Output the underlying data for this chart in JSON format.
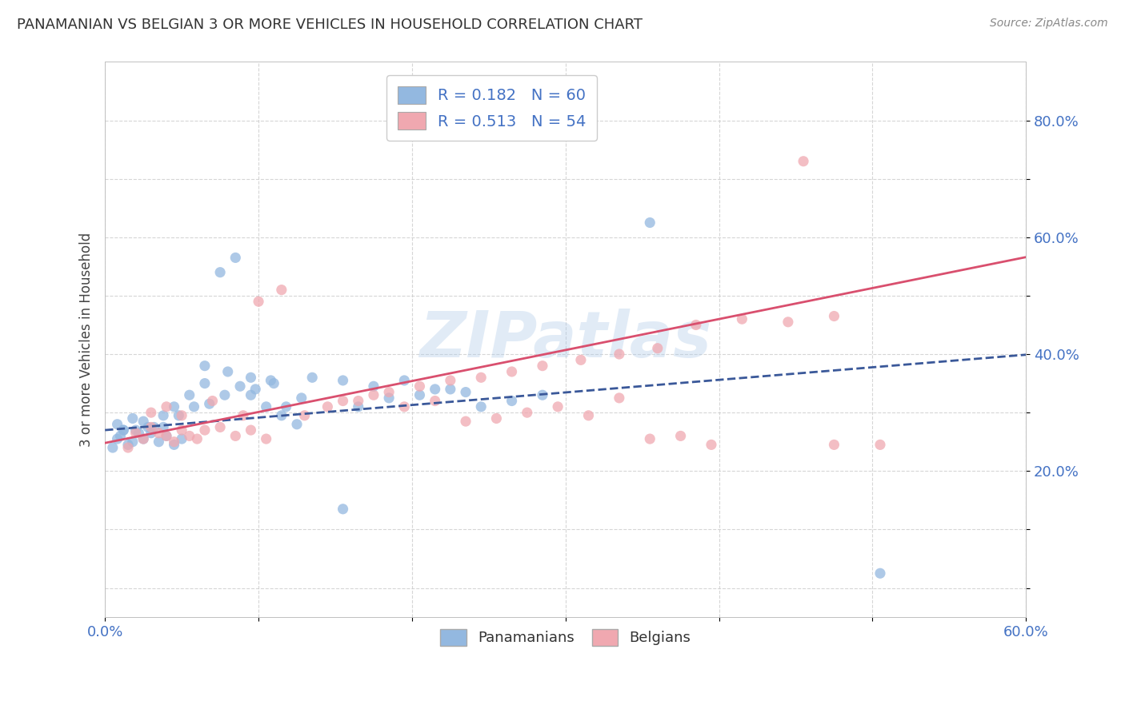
{
  "title": "PANAMANIAN VS BELGIAN 3 OR MORE VEHICLES IN HOUSEHOLD CORRELATION CHART",
  "source": "Source: ZipAtlas.com",
  "ylabel": "3 or more Vehicles in Household",
  "xlim": [
    0.0,
    0.6
  ],
  "ylim": [
    -0.05,
    0.9
  ],
  "x_ticks": [
    0.0,
    0.1,
    0.2,
    0.3,
    0.4,
    0.5,
    0.6
  ],
  "x_tick_labels": [
    "0.0%",
    "",
    "",
    "",
    "",
    "",
    "60.0%"
  ],
  "y_ticks": [
    0.0,
    0.1,
    0.2,
    0.3,
    0.4,
    0.5,
    0.6,
    0.7,
    0.8
  ],
  "y_tick_labels": [
    "",
    "",
    "20.0%",
    "",
    "40.0%",
    "",
    "60.0%",
    "",
    "80.0%"
  ],
  "legend_r1": "R = 0.182   N = 60",
  "legend_r2": "R = 0.513   N = 54",
  "legend_labels": [
    "Panamanians",
    "Belgians"
  ],
  "blue_color": "#93b8e0",
  "pink_color": "#f0a8b0",
  "blue_line_color": "#3a5899",
  "pink_line_color": "#d94f6e",
  "blue_line_intercept": 0.27,
  "blue_line_slope": 0.215,
  "pink_line_intercept": 0.248,
  "pink_line_slope": 0.53,
  "pan_x": [
    0.008,
    0.012,
    0.018,
    0.022,
    0.028,
    0.005,
    0.01,
    0.015,
    0.02,
    0.025,
    0.03,
    0.035,
    0.04,
    0.045,
    0.05,
    0.008,
    0.012,
    0.018,
    0.025,
    0.032,
    0.038,
    0.045,
    0.055,
    0.065,
    0.075,
    0.085,
    0.095,
    0.105,
    0.115,
    0.125,
    0.038,
    0.048,
    0.058,
    0.068,
    0.078,
    0.088,
    0.098,
    0.108,
    0.118,
    0.128,
    0.065,
    0.08,
    0.095,
    0.11,
    0.135,
    0.155,
    0.175,
    0.195,
    0.215,
    0.235,
    0.165,
    0.185,
    0.205,
    0.225,
    0.245,
    0.265,
    0.285,
    0.155,
    0.355,
    0.505
  ],
  "pan_y": [
    0.255,
    0.27,
    0.25,
    0.265,
    0.275,
    0.24,
    0.26,
    0.245,
    0.27,
    0.255,
    0.265,
    0.25,
    0.26,
    0.245,
    0.255,
    0.28,
    0.27,
    0.29,
    0.285,
    0.275,
    0.295,
    0.31,
    0.33,
    0.35,
    0.54,
    0.565,
    0.33,
    0.31,
    0.295,
    0.28,
    0.275,
    0.295,
    0.31,
    0.315,
    0.33,
    0.345,
    0.34,
    0.355,
    0.31,
    0.325,
    0.38,
    0.37,
    0.36,
    0.35,
    0.36,
    0.355,
    0.345,
    0.355,
    0.34,
    0.335,
    0.31,
    0.325,
    0.33,
    0.34,
    0.31,
    0.32,
    0.33,
    0.135,
    0.625,
    0.025
  ],
  "bel_x": [
    0.015,
    0.025,
    0.035,
    0.045,
    0.055,
    0.02,
    0.03,
    0.04,
    0.05,
    0.06,
    0.065,
    0.075,
    0.085,
    0.095,
    0.105,
    0.03,
    0.04,
    0.05,
    0.07,
    0.09,
    0.1,
    0.115,
    0.13,
    0.145,
    0.165,
    0.185,
    0.205,
    0.225,
    0.245,
    0.265,
    0.285,
    0.31,
    0.335,
    0.36,
    0.385,
    0.415,
    0.445,
    0.475,
    0.505,
    0.155,
    0.175,
    0.195,
    0.215,
    0.235,
    0.255,
    0.275,
    0.295,
    0.315,
    0.335,
    0.355,
    0.375,
    0.395,
    0.455,
    0.475
  ],
  "bel_y": [
    0.24,
    0.255,
    0.265,
    0.25,
    0.26,
    0.265,
    0.275,
    0.26,
    0.27,
    0.255,
    0.27,
    0.275,
    0.26,
    0.27,
    0.255,
    0.3,
    0.31,
    0.295,
    0.32,
    0.295,
    0.49,
    0.51,
    0.295,
    0.31,
    0.32,
    0.335,
    0.345,
    0.355,
    0.36,
    0.37,
    0.38,
    0.39,
    0.4,
    0.41,
    0.45,
    0.46,
    0.455,
    0.465,
    0.245,
    0.32,
    0.33,
    0.31,
    0.32,
    0.285,
    0.29,
    0.3,
    0.31,
    0.295,
    0.325,
    0.255,
    0.26,
    0.245,
    0.73,
    0.245
  ]
}
